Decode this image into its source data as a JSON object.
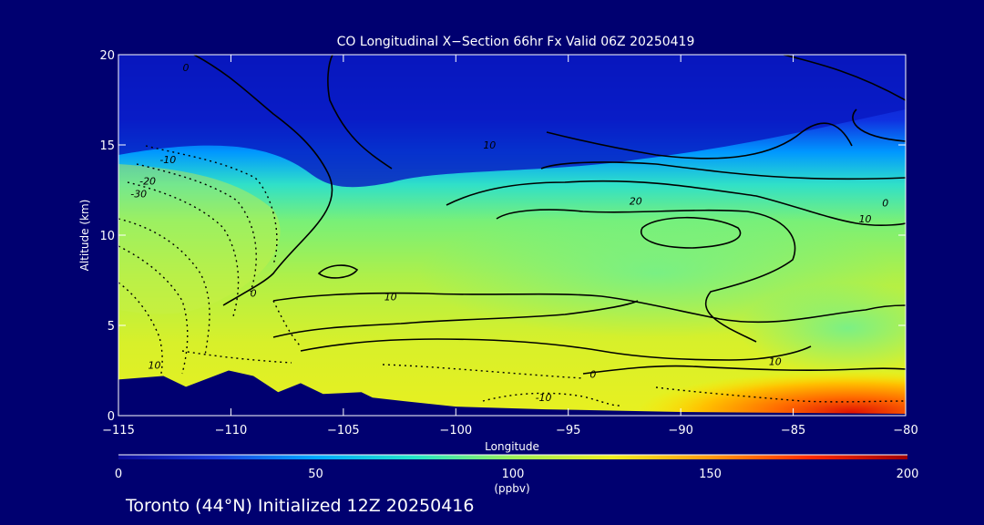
{
  "chart_data": {
    "type": "heatmap",
    "title": "CO Longitudinal X−Section 66hr  Fx Valid 06Z 20250419",
    "xlabel": "Longitude",
    "ylabel": "Altitude (km)",
    "xlim": [
      -115,
      -80
    ],
    "ylim": [
      0,
      20
    ],
    "x_ticks": [
      -115,
      -110,
      -105,
      -100,
      -95,
      -90,
      -85,
      -80
    ],
    "x_tick_labels": [
      "−115",
      "−110",
      "−105",
      "−100",
      "−95",
      "−90",
      "−85",
      "−80"
    ],
    "y_ticks": [
      0,
      5,
      10,
      15,
      20
    ],
    "y_tick_labels": [
      "0",
      "5",
      "10",
      "15",
      "20"
    ],
    "colorbar": {
      "min": 0,
      "max": 200,
      "ticks": [
        0,
        50,
        100,
        150,
        200
      ],
      "tick_labels": [
        "0",
        "50",
        "100",
        "150",
        "200"
      ],
      "unit_label": "(ppbv)",
      "stops": [
        "#0a0a9a",
        "#1d3fe0",
        "#00a8ff",
        "#22e6c8",
        "#9cf058",
        "#f0f020",
        "#ff9a10",
        "#ff2a00",
        "#a00000"
      ]
    },
    "colormap_regions": {
      "lower_troposphere_ppbv": 120,
      "upper_troposphere_ppbv": 35,
      "surface_plume_east_ppbv": 190
    },
    "contours": {
      "solid_levels": [
        "0",
        "10",
        "20"
      ],
      "dashed_levels": [
        "-10",
        "-20",
        "-30"
      ],
      "labels": [
        {
          "text": "0",
          "lon": -112.0,
          "alt": 19.3
        },
        {
          "text": "10",
          "lon": -98.5,
          "alt": 15.0
        },
        {
          "text": "-10",
          "lon": -112.8,
          "alt": 14.2
        },
        {
          "text": "-20",
          "lon": -113.7,
          "alt": 13.0
        },
        {
          "text": "-30",
          "lon": -114.1,
          "alt": 12.3
        },
        {
          "text": "20",
          "lon": -92.0,
          "alt": 11.9
        },
        {
          "text": "0",
          "lon": -80.9,
          "alt": 11.8
        },
        {
          "text": "10",
          "lon": -81.8,
          "alt": 10.9
        },
        {
          "text": "0",
          "lon": -109.0,
          "alt": 6.8
        },
        {
          "text": "10",
          "lon": -102.9,
          "alt": 6.6
        },
        {
          "text": "10",
          "lon": -85.8,
          "alt": 3.0
        },
        {
          "text": "10",
          "lon": -113.4,
          "alt": 2.8
        },
        {
          "text": "0",
          "lon": -93.9,
          "alt": 2.3
        },
        {
          "text": "-10",
          "lon": -96.1,
          "alt": 1.0
        }
      ]
    },
    "terrain_profile": [
      {
        "lon": -115.0,
        "alt": 2.0
      },
      {
        "lon": -113.0,
        "alt": 2.2
      },
      {
        "lon": -112.0,
        "alt": 1.6
      },
      {
        "lon": -110.1,
        "alt": 2.5
      },
      {
        "lon": -109.0,
        "alt": 2.2
      },
      {
        "lon": -107.9,
        "alt": 1.3
      },
      {
        "lon": -106.9,
        "alt": 1.8
      },
      {
        "lon": -105.9,
        "alt": 1.2
      },
      {
        "lon": -104.2,
        "alt": 1.3
      },
      {
        "lon": -103.7,
        "alt": 1.0
      },
      {
        "lon": -102.3,
        "alt": 0.8
      },
      {
        "lon": -100.0,
        "alt": 0.5
      },
      {
        "lon": -96.0,
        "alt": 0.35
      },
      {
        "lon": -90.0,
        "alt": 0.2
      },
      {
        "lon": -80.0,
        "alt": 0.1
      }
    ]
  },
  "footer": {
    "location_text": "Toronto (44°N) Initialized 12Z 20250416"
  }
}
